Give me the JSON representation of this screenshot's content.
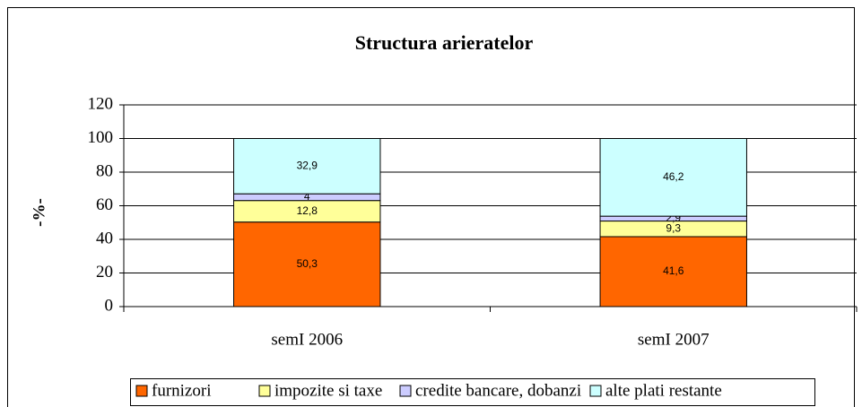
{
  "chart_data": {
    "type": "stacked_bar",
    "title": "Structura arieratelor",
    "ylabel": "-%-",
    "categories": [
      "semI 2006",
      "semI 2007"
    ],
    "series": [
      {
        "name": "furnizori",
        "color": "#ff6600",
        "values": [
          50.3,
          41.6
        ],
        "value_labels": [
          "50,3",
          "41,6"
        ]
      },
      {
        "name": "impozite si taxe",
        "color": "#ffff99",
        "values": [
          12.8,
          9.3
        ],
        "value_labels": [
          "12,8",
          "9,3"
        ]
      },
      {
        "name": "credite bancare, dobanzi",
        "color": "#ccccff",
        "values": [
          4,
          2.9
        ],
        "value_labels": [
          "4",
          "2,9"
        ]
      },
      {
        "name": "alte plati restante",
        "color": "#ccffff",
        "values": [
          32.9,
          46.2
        ],
        "value_labels": [
          "32,9",
          "46,2"
        ]
      }
    ],
    "ylim": [
      0,
      120
    ],
    "yticks": [
      0,
      20,
      40,
      60,
      80,
      100,
      120
    ],
    "grid": true,
    "legend": "bottom"
  }
}
